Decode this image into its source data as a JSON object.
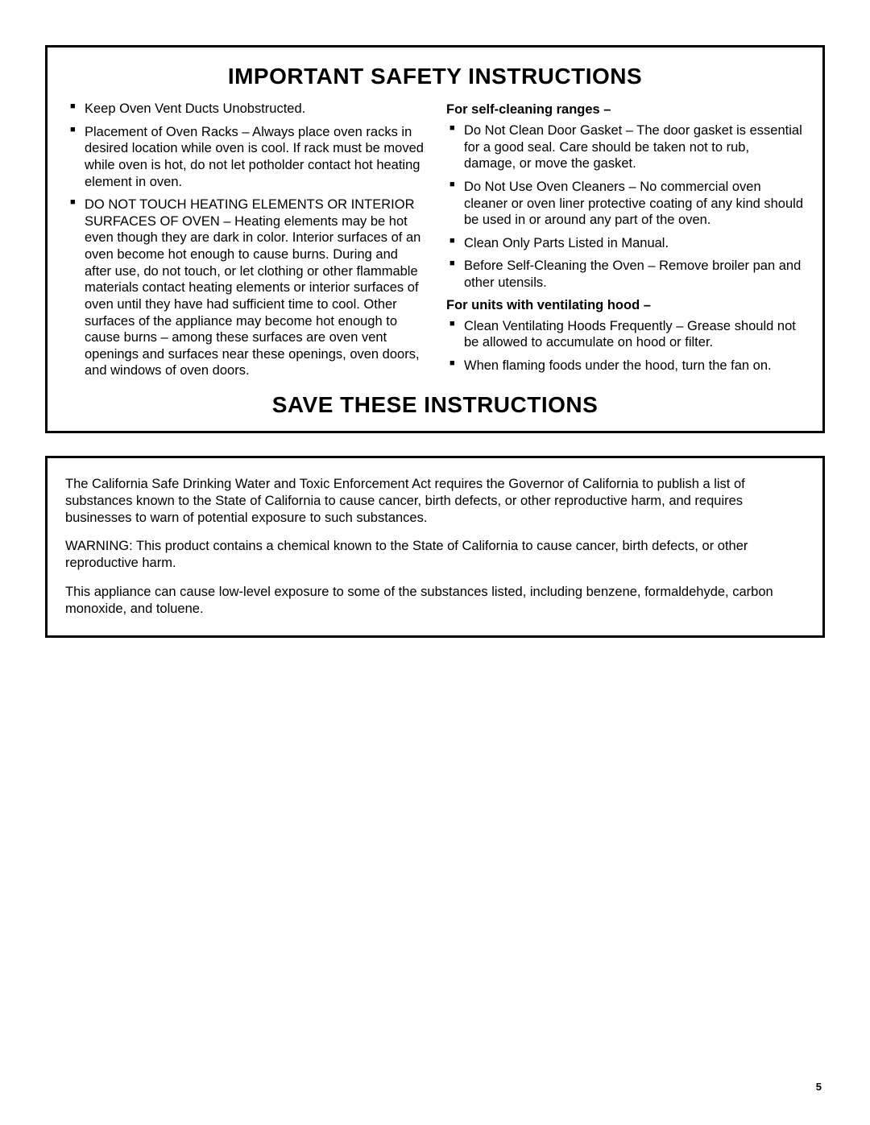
{
  "safety_box": {
    "title": "IMPORTANT SAFETY INSTRUCTIONS",
    "save_title": "SAVE THESE INSTRUCTIONS",
    "left_items": [
      "Keep Oven Vent Ducts Unobstructed.",
      "Placement of Oven Racks – Always place oven racks in desired location while oven is cool. If rack must be moved while oven is hot, do not let potholder contact hot heating element in oven.",
      "DO NOT TOUCH HEATING ELEMENTS OR INTERIOR SURFACES OF OVEN – Heating elements may be hot even though they are dark in color. Interior surfaces of an oven become hot enough to cause burns. During and after use, do not touch, or let clothing or other flammable materials contact heating elements or interior surfaces of oven until they have had sufficient time to cool. Other surfaces of the appliance may become hot enough to cause burns – among these surfaces are oven vent openings and surfaces near these openings, oven doors, and windows of oven doors."
    ],
    "right": {
      "sub1": "For self-cleaning ranges –",
      "items1": [
        "Do Not Clean Door Gasket – The door gasket is essential for a good seal. Care should be taken not to rub, damage, or move the gasket.",
        "Do Not Use Oven Cleaners – No commercial oven cleaner or oven liner protective coating of any kind should be used in or around any part of the oven.",
        "Clean Only Parts Listed in Manual.",
        "Before Self-Cleaning the Oven – Remove broiler pan and other utensils."
      ],
      "sub2": "For units with ventilating hood –",
      "items2": [
        "Clean Ventilating Hoods Frequently – Grease should not be allowed to accumulate on hood or filter.",
        "When flaming foods under the hood, turn the fan on."
      ]
    }
  },
  "warning_box": {
    "p1": "The California Safe Drinking Water and Toxic Enforcement Act requires the Governor of California to publish a list of substances known to the State of California to cause cancer, birth defects, or other reproductive harm, and requires businesses to warn of potential exposure to such substances.",
    "p2": "WARNING: This product contains a chemical known to the State of California to cause cancer, birth defects, or other reproductive harm.",
    "p3": "This appliance can cause low-level exposure to some of the substances listed, including benzene, formaldehyde, carbon monoxide, and toluene."
  },
  "page_number": "5"
}
